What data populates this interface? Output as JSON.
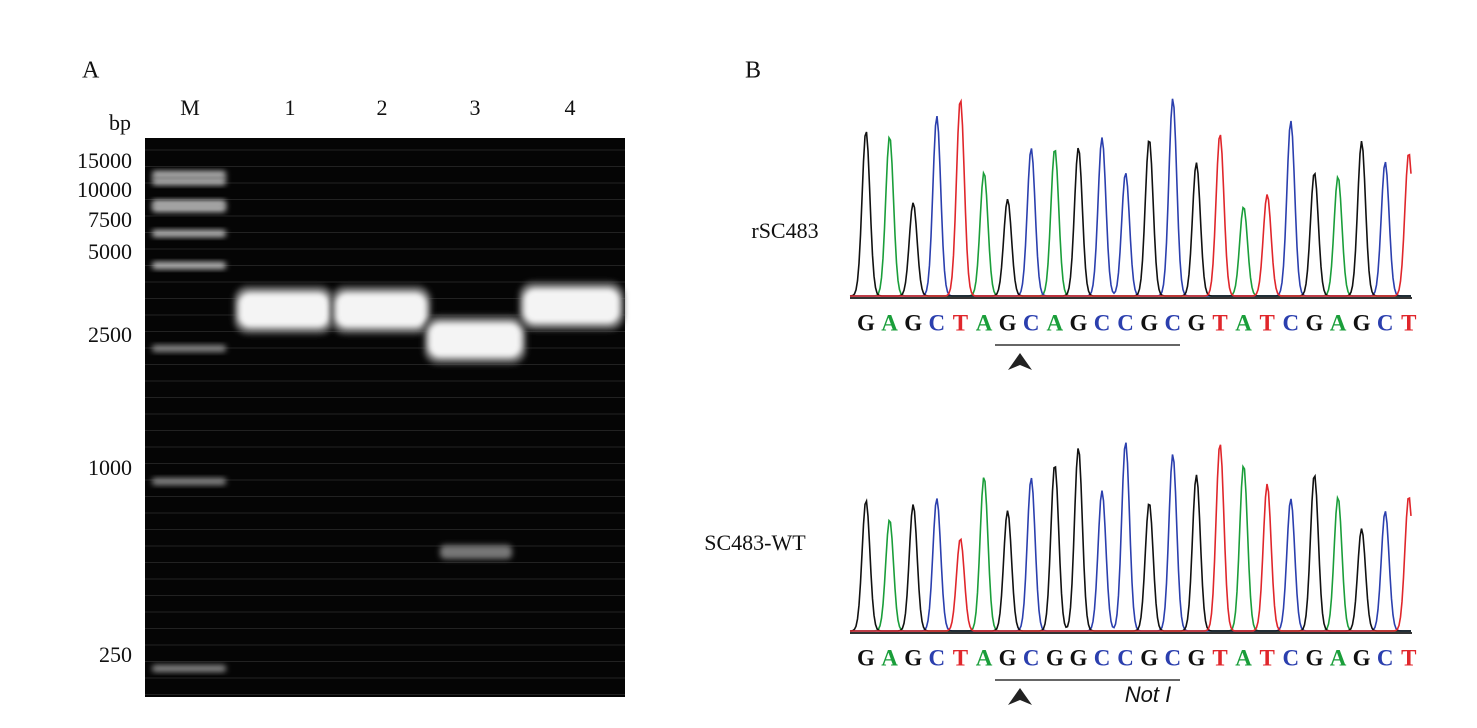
{
  "panel_a": {
    "label": "A",
    "unit": "bp",
    "lanes": [
      "M",
      "1",
      "2",
      "3",
      "4"
    ],
    "ladder": [
      "15000",
      "10000",
      "7500",
      "5000",
      "2500",
      "1000",
      "250"
    ]
  },
  "panel_b": {
    "label": "B",
    "traces": [
      {
        "name": "rSC483",
        "sequence": [
          "G",
          "A",
          "G",
          "C",
          "T",
          "A",
          "G",
          "C",
          "A",
          "G",
          "C",
          "C",
          "G",
          "C",
          "G",
          "T",
          "A",
          "T",
          "C",
          "G",
          "A",
          "G",
          "C",
          "T"
        ]
      },
      {
        "name": "SC483-WT",
        "sequence": [
          "G",
          "A",
          "G",
          "C",
          "T",
          "A",
          "G",
          "C",
          "G",
          "G",
          "C",
          "C",
          "G",
          "C",
          "G",
          "T",
          "A",
          "T",
          "C",
          "G",
          "A",
          "G",
          "C",
          "T"
        ],
        "site": "Not I"
      }
    ]
  }
}
